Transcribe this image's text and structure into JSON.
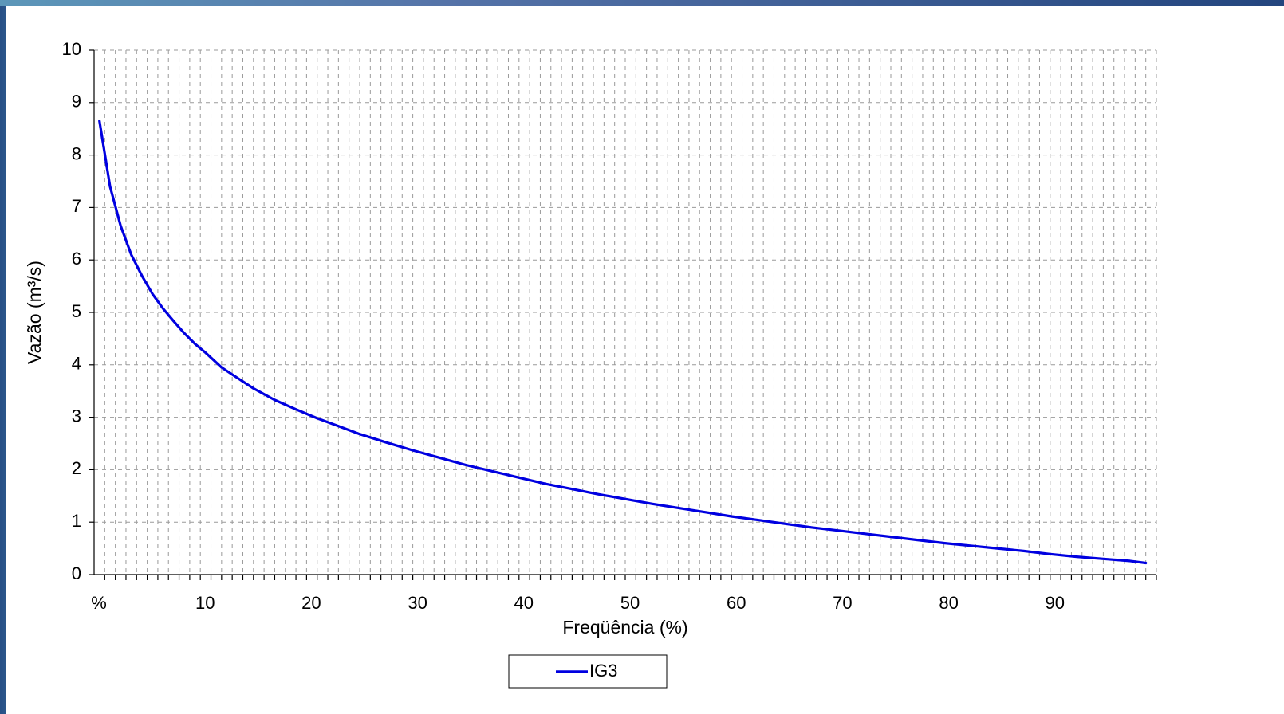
{
  "chart_data": {
    "type": "line",
    "xlabel": "Freqüência (%)",
    "ylabel": "Vazão (m³/s)",
    "xlim": [
      0,
      100
    ],
    "ylim": [
      0,
      10
    ],
    "grid": true,
    "legend_position": "bottom",
    "xticks": [
      {
        "value": 0,
        "label": "%"
      },
      {
        "value": 10,
        "label": "10"
      },
      {
        "value": 20,
        "label": "20"
      },
      {
        "value": 30,
        "label": "30"
      },
      {
        "value": 40,
        "label": "40"
      },
      {
        "value": 50,
        "label": "50"
      },
      {
        "value": 60,
        "label": "60"
      },
      {
        "value": 70,
        "label": "70"
      },
      {
        "value": 80,
        "label": "80"
      },
      {
        "value": 90,
        "label": "90"
      }
    ],
    "yticks": [
      "0",
      "1",
      "2",
      "3",
      "4",
      "5",
      "6",
      "7",
      "8",
      "9",
      "10"
    ],
    "series": [
      {
        "name": "IG3",
        "color": "#0000e0",
        "x": [
          0.5,
          1.5,
          2.5,
          3.5,
          4.5,
          5.5,
          6.5,
          7.5,
          8.5,
          9.5,
          10.5,
          12,
          13.5,
          15,
          17,
          19,
          21,
          23,
          25,
          27.5,
          30,
          32.5,
          35,
          37.5,
          40,
          42.5,
          45,
          47.5,
          50,
          52.5,
          55,
          57.5,
          60,
          62.5,
          65,
          67.5,
          70,
          72.5,
          75,
          77.5,
          80,
          82.5,
          85,
          87.5,
          90,
          92.5,
          95,
          97.5,
          99
        ],
        "y": [
          8.65,
          7.4,
          6.65,
          6.1,
          5.7,
          5.35,
          5.07,
          4.83,
          4.6,
          4.4,
          4.23,
          3.95,
          3.75,
          3.55,
          3.33,
          3.15,
          2.98,
          2.83,
          2.68,
          2.52,
          2.37,
          2.23,
          2.09,
          1.97,
          1.85,
          1.73,
          1.63,
          1.53,
          1.44,
          1.35,
          1.27,
          1.19,
          1.11,
          1.04,
          0.97,
          0.9,
          0.84,
          0.78,
          0.72,
          0.66,
          0.6,
          0.55,
          0.5,
          0.45,
          0.39,
          0.34,
          0.3,
          0.26,
          0.22
        ]
      }
    ]
  }
}
